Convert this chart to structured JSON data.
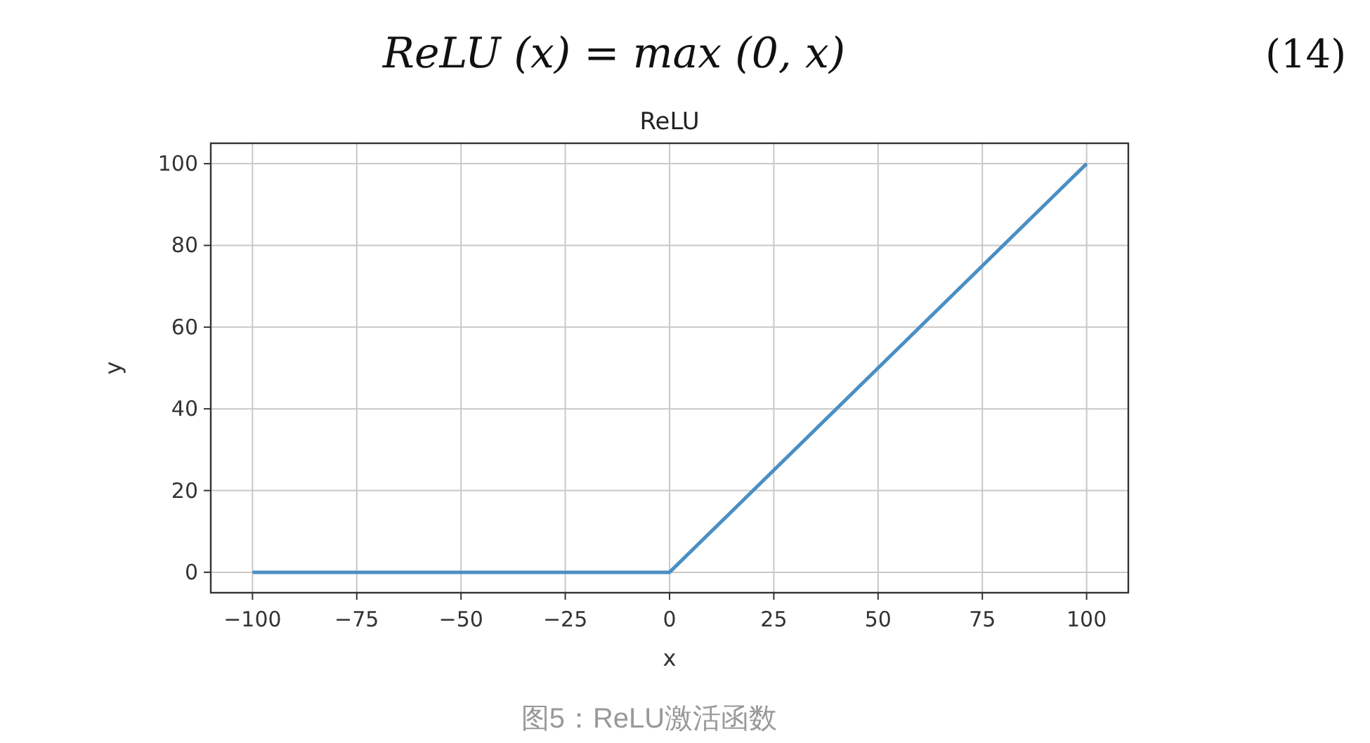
{
  "chart_data": {
    "type": "line",
    "title": "ReLU",
    "xlabel": "x",
    "ylabel": "y",
    "annotations": [
      "ReLU (x) = max (0, x)",
      "(14)",
      "图5：ReLU激活函数"
    ],
    "x": [
      -100,
      0,
      100
    ],
    "series": [
      {
        "color": "#4a8fc4",
        "values": [
          0,
          0,
          100
        ]
      }
    ],
    "xlim": [
      -110,
      110
    ],
    "ylim": [
      -5,
      105
    ],
    "xticks": [
      {
        "value": -100,
        "label": "−100"
      },
      {
        "value": -75,
        "label": "−75"
      },
      {
        "value": -50,
        "label": "−50"
      },
      {
        "value": -25,
        "label": "−25"
      },
      0,
      25,
      50,
      75,
      100
    ],
    "yticks": [
      0,
      20,
      40,
      60,
      80,
      100
    ],
    "grid": true,
    "marker": "none",
    "line_style": "solid"
  }
}
